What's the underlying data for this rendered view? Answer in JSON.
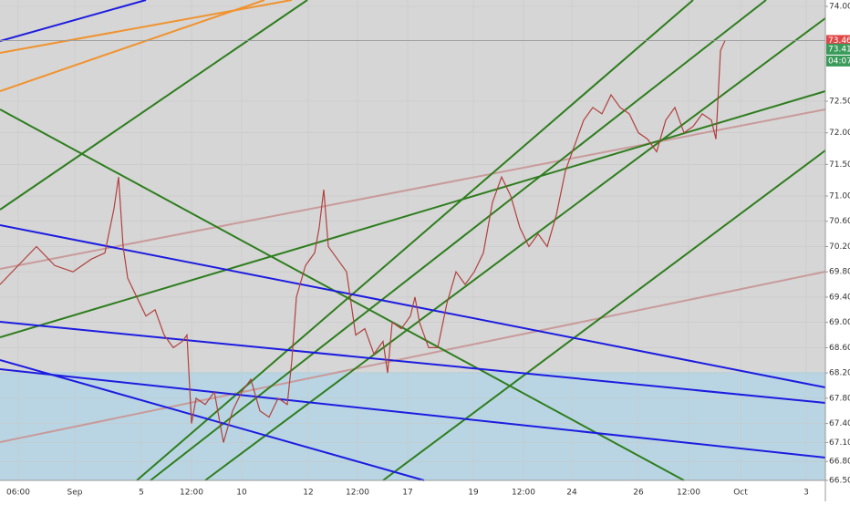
{
  "chart_data": {
    "type": "line",
    "x": [
      0,
      20,
      40,
      60,
      80,
      100,
      115,
      125,
      130,
      135,
      140,
      150,
      160,
      170,
      180,
      190,
      200,
      205,
      210,
      215,
      225,
      235,
      245,
      255,
      265,
      275,
      285,
      295,
      305,
      315,
      320,
      325,
      335,
      345,
      350,
      355,
      360,
      370,
      380,
      390,
      400,
      410,
      420,
      425,
      430,
      440,
      450,
      455,
      460,
      470,
      480,
      490,
      500,
      510,
      520,
      530,
      540,
      550,
      560,
      570,
      580,
      590,
      600,
      610,
      620,
      630,
      640,
      650,
      660,
      670,
      680,
      690,
      700,
      710,
      720,
      730,
      740,
      750,
      760,
      770,
      780,
      785,
      790,
      795
    ],
    "series": [
      {
        "color": "#b0413e",
        "values": [
          69.6,
          69.9,
          70.2,
          69.9,
          69.8,
          70.0,
          70.1,
          70.8,
          71.3,
          70.2,
          69.7,
          69.4,
          69.1,
          69.2,
          68.8,
          68.6,
          68.7,
          68.8,
          67.4,
          67.8,
          67.7,
          67.9,
          67.1,
          67.6,
          67.9,
          68.1,
          67.6,
          67.5,
          67.8,
          67.7,
          68.4,
          69.4,
          69.9,
          70.1,
          70.5,
          71.1,
          70.2,
          70.0,
          69.8,
          68.8,
          68.9,
          68.5,
          68.7,
          68.2,
          69.0,
          68.9,
          69.1,
          69.4,
          69.0,
          68.6,
          68.6,
          69.3,
          69.8,
          69.6,
          69.8,
          70.1,
          70.9,
          71.3,
          71.0,
          70.5,
          70.2,
          70.4,
          70.2,
          70.7,
          71.4,
          71.8,
          72.2,
          72.4,
          72.3,
          72.6,
          72.4,
          72.3,
          72.0,
          71.9,
          71.7,
          72.2,
          72.4,
          72.0,
          72.1,
          72.3,
          72.2,
          71.9,
          73.3,
          73.46
        ]
      }
    ],
    "xlim": [
      0,
      905
    ],
    "ylim": [
      66.5,
      74.0
    ],
    "yticks": [
      {
        "value": 74.0,
        "label": "74.00"
      },
      {
        "value": 72.5,
        "label": "72.50"
      },
      {
        "value": 72.0,
        "label": "72.00"
      },
      {
        "value": 71.5,
        "label": "71.50"
      },
      {
        "value": 71.0,
        "label": "71.00"
      },
      {
        "value": 70.6,
        "label": "70.60"
      },
      {
        "value": 70.2,
        "label": "70.20"
      },
      {
        "value": 69.8,
        "label": "69.80"
      },
      {
        "value": 69.4,
        "label": "69.40"
      },
      {
        "value": 69.0,
        "label": "69.00"
      },
      {
        "value": 68.6,
        "label": "68.60"
      },
      {
        "value": 68.2,
        "label": "68.20"
      },
      {
        "value": 67.8,
        "label": "67.80"
      },
      {
        "value": 67.4,
        "label": "67.40"
      },
      {
        "value": 67.1,
        "label": "67.10"
      },
      {
        "value": 66.8,
        "label": "66.80"
      },
      {
        "value": 66.5,
        "label": "66.50"
      }
    ],
    "price_labels": [
      {
        "value": 73.46,
        "label": "73.46",
        "color": "#e04848"
      },
      {
        "value": 73.41,
        "label": "73.41",
        "color": "#3a9a5a"
      }
    ],
    "countdown": "04:07",
    "categories": [
      "06:00",
      "Sep",
      "5",
      "12:00",
      "10",
      "12",
      "12:00",
      "17",
      "19",
      "12:00",
      "24",
      "26",
      "12:00",
      "Oct",
      "3"
    ]
  }
}
